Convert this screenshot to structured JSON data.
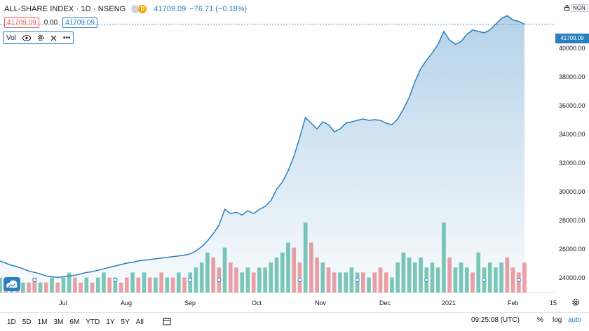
{
  "header": {
    "symbol": "ALL-SHARE INDEX · 1D · NSENG",
    "d_badge": "D",
    "last_value": "41709.09",
    "change": "−76.71 (−0.18%)",
    "price_box_1": "41709.09",
    "zero_value": "0.00",
    "price_box_2": "41709.09",
    "vol_label": "Vol",
    "more_label": "•••"
  },
  "currency": "NGN",
  "price_tag": "41709.09",
  "y_axis": [
    "42000.00",
    "40000.00",
    "38000.00",
    "36000.00",
    "34000.00",
    "32000.00",
    "30000.00",
    "28000.00",
    "26000.00",
    "24000.00"
  ],
  "x_axis": [
    "Jul",
    "Aug",
    "Sep",
    "Oct",
    "Nov",
    "Dec",
    "2021",
    "Feb",
    "15"
  ],
  "ranges": [
    "1D",
    "5D",
    "1M",
    "3M",
    "6M",
    "YTD",
    "1Y",
    "5Y",
    "All"
  ],
  "time": "09:25:08 (UTC)",
  "options": [
    "%",
    "log",
    "auto"
  ],
  "colors": {
    "line": "#2a7fbe",
    "up": "#7dcab8",
    "down": "#f2a0a4"
  },
  "chart_data": {
    "type": "area",
    "ylim": [
      23000,
      43000
    ],
    "y_ticks": [
      24000,
      26000,
      28000,
      30000,
      32000,
      34000,
      36000,
      38000,
      40000,
      42000
    ],
    "x_ticks": [
      "Jul",
      "Aug",
      "Sep",
      "Oct",
      "Nov",
      "Dec",
      "2021",
      "Feb",
      "15"
    ],
    "series": [
      {
        "values": [
          25200,
          25050,
          24900,
          24800,
          24650,
          24500,
          24400,
          24300,
          24150,
          24100,
          24050,
          24100,
          24150,
          24200,
          24300,
          24400,
          24450,
          24550,
          24650,
          24750,
          24850,
          24950,
          25050,
          25100,
          25200,
          25250,
          25300,
          25350,
          25400,
          25450,
          25500,
          25550,
          25600,
          25700,
          25900,
          26200,
          26600,
          27100,
          27700,
          28800,
          28500,
          28600,
          28400,
          28700,
          28500,
          28800,
          29000,
          29400,
          30200,
          30700,
          31500,
          32500,
          33800,
          35200,
          34800,
          34400,
          34900,
          34700,
          34200,
          34400,
          34800,
          34900,
          35000,
          35100,
          35000,
          35050,
          35000,
          34800,
          34700,
          35100,
          35800,
          36600,
          37700,
          38600,
          39200,
          39700,
          40300,
          41200,
          40600,
          40300,
          40500,
          41000,
          41300,
          41200,
          41100,
          41300,
          41700,
          42100,
          42300,
          42000,
          41900,
          41709
        ]
      }
    ],
    "volume": [
      3,
      2,
      2,
      3,
      2,
      2,
      3,
      2,
      2,
      3,
      2,
      3,
      4,
      3,
      2,
      3,
      2,
      3,
      4,
      3,
      3,
      2,
      3,
      4,
      3,
      4,
      3,
      3,
      4,
      3,
      3,
      4,
      3,
      4,
      5,
      6,
      8,
      7,
      5,
      9,
      6,
      5,
      4,
      5,
      4,
      5,
      5,
      6,
      7,
      8,
      10,
      9,
      6,
      14,
      10,
      7,
      6,
      5,
      4,
      4,
      4,
      5,
      4,
      4,
      3,
      4,
      5,
      4,
      3,
      6,
      8,
      7,
      6,
      7,
      5,
      6,
      5,
      14,
      7,
      5,
      6,
      5,
      4,
      8,
      5,
      6,
      5,
      6,
      7,
      5,
      4,
      6
    ],
    "volume_up": [
      true,
      false,
      true,
      false,
      true,
      false,
      false,
      true,
      false,
      true,
      false,
      true,
      true,
      false,
      false,
      true,
      false,
      true,
      true,
      false,
      true,
      false,
      false,
      true,
      false,
      true,
      false,
      true,
      false,
      true,
      false,
      true,
      false,
      true,
      true,
      true,
      true,
      false,
      false,
      true,
      false,
      false,
      true,
      true,
      false,
      true,
      true,
      true,
      true,
      true,
      true,
      false,
      false,
      true,
      false,
      false,
      true,
      false,
      false,
      true,
      true,
      true,
      true,
      false,
      true,
      false,
      false,
      false,
      true,
      true,
      true,
      true,
      true,
      true,
      true,
      true,
      true,
      true,
      false,
      true,
      true,
      true,
      false,
      true,
      true,
      true,
      true,
      true,
      false,
      false,
      false,
      false
    ]
  }
}
